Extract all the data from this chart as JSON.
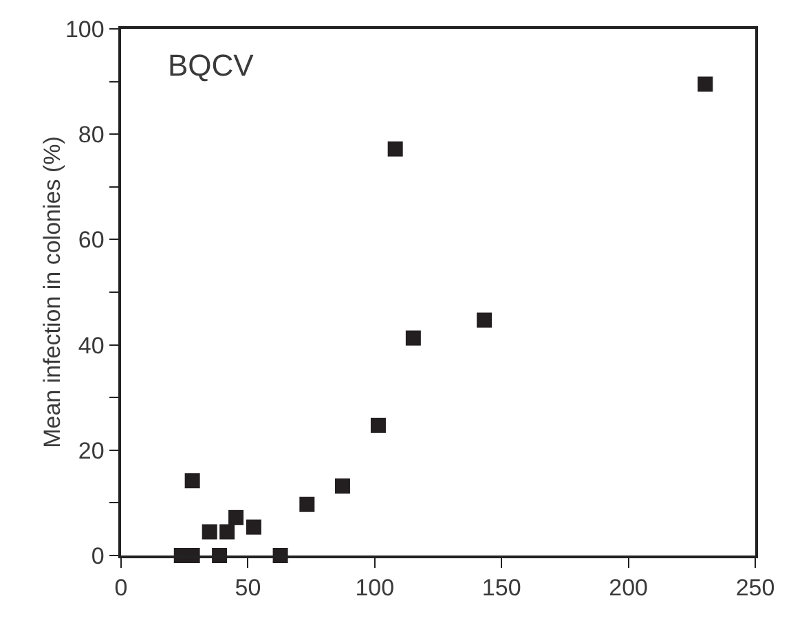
{
  "chart_data": {
    "type": "scatter",
    "ylabel": "Mean infection in colonies (%)",
    "annotations": [
      "BQCV"
    ],
    "x": [
      23.8,
      28.1,
      28.1,
      34.9,
      38.8,
      41.8,
      45.3,
      52.3,
      62.8,
      73.3,
      87.3,
      101.4,
      108.1,
      115.2,
      143.2,
      230.3
    ],
    "series": [
      {
        "color": "#231f20",
        "values": [
          0,
          0,
          14.2,
          4.5,
          0,
          4.5,
          7.2,
          5.4,
          0,
          9.7,
          13.2,
          24.7,
          77.2,
          41.3,
          44.7,
          89.5
        ]
      }
    ],
    "marker": "square",
    "xlim": [
      0,
      250
    ],
    "xticks": [
      0,
      50,
      100,
      150,
      200,
      250
    ],
    "ylim": [
      0,
      100
    ],
    "yticks": [
      0,
      {
        "value": 10,
        "label": null
      },
      20,
      {
        "value": 30,
        "label": null
      },
      40,
      {
        "value": 50,
        "label": null
      },
      60,
      {
        "value": 70,
        "label": null
      },
      80,
      {
        "value": 90,
        "label": null
      },
      100
    ]
  }
}
